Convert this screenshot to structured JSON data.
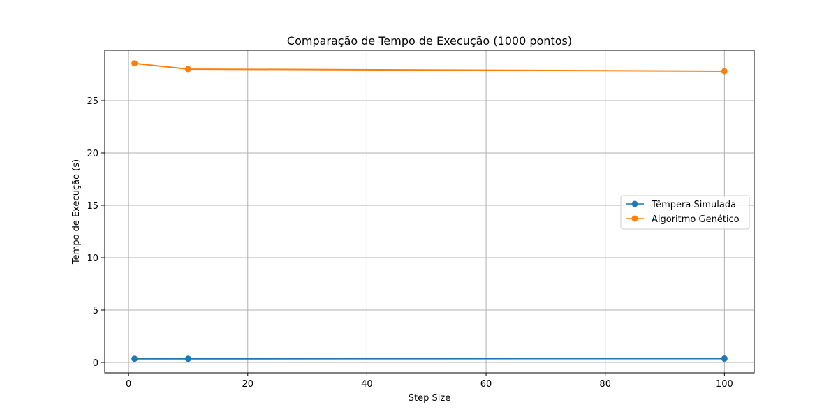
{
  "chart_data": {
    "type": "line",
    "title": "Comparação de Tempo de Execução (1000 pontos)",
    "xlabel": "Step Size",
    "ylabel": "Tempo de Execução (s)",
    "xlim": [
      -4,
      105
    ],
    "ylim": [
      -1,
      29.8
    ],
    "x_ticks": [
      0,
      20,
      40,
      60,
      80,
      100
    ],
    "y_ticks": [
      0,
      5,
      10,
      15,
      20,
      25
    ],
    "x_tick_labels": [
      "0",
      "20",
      "40",
      "60",
      "80",
      "100"
    ],
    "y_tick_labels": [
      "0",
      "5",
      "10",
      "15",
      "20",
      "25"
    ],
    "grid": true,
    "legend_position": "center-right",
    "series": [
      {
        "name": "Têmpera Simulada",
        "color": "#1f77b4",
        "marker": "circle",
        "x": [
          1,
          10,
          100
        ],
        "values": [
          0.35,
          0.35,
          0.37
        ]
      },
      {
        "name": "Algoritmo Genético",
        "color": "#ff7f0e",
        "marker": "circle",
        "x": [
          1,
          10,
          100
        ],
        "values": [
          28.55,
          28.0,
          27.8
        ]
      }
    ]
  }
}
